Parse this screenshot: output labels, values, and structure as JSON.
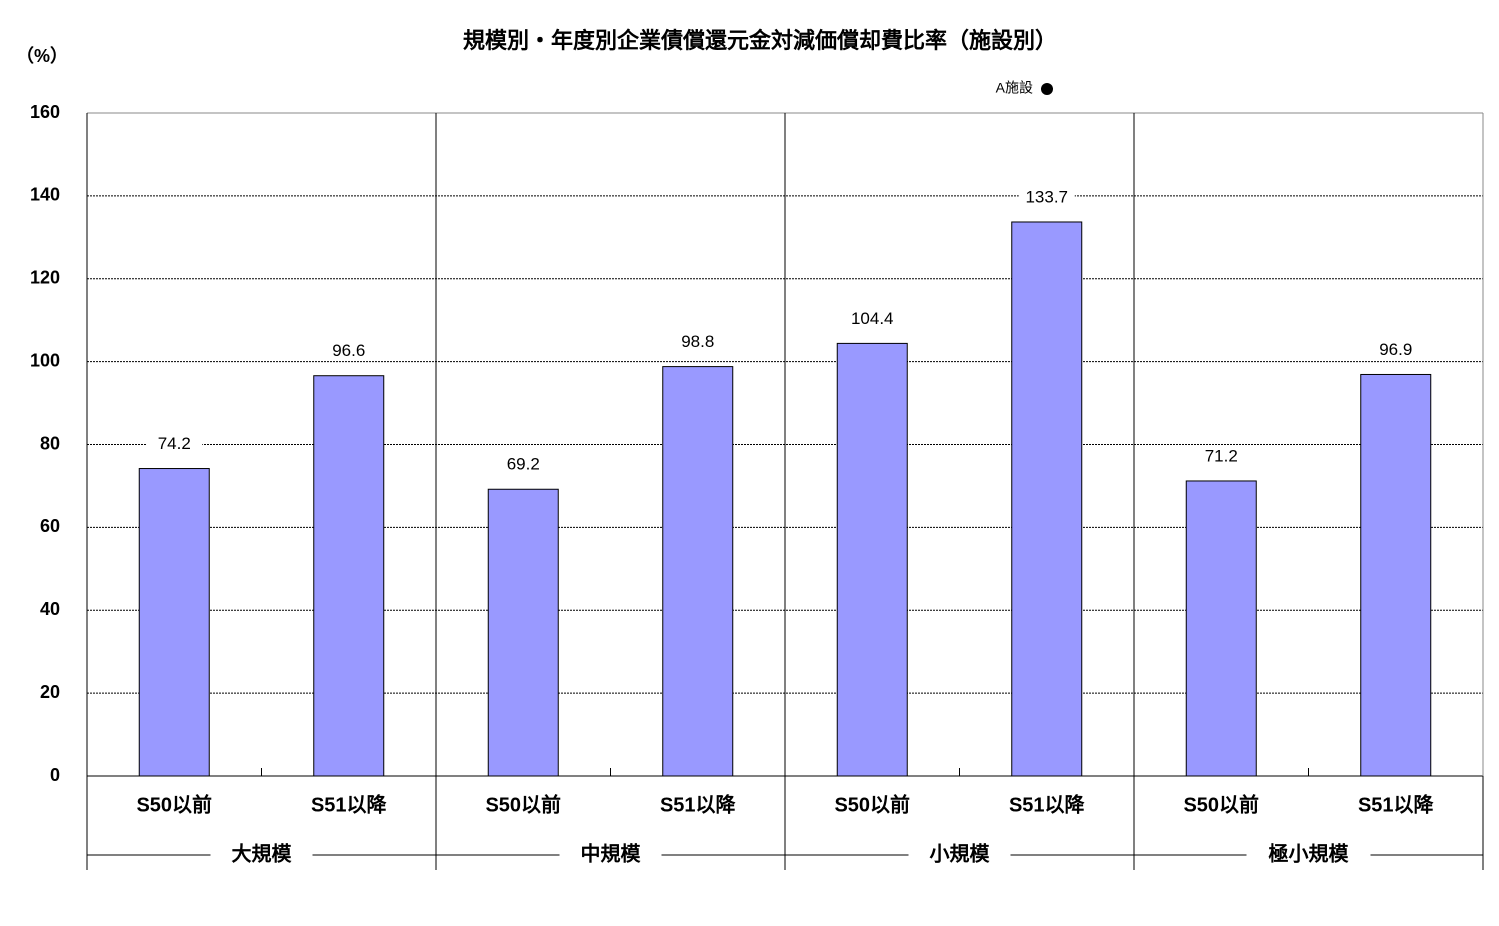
{
  "chart_data": {
    "type": "bar",
    "title": "規模別・年度別企業債償還元金対減価償却費比率（施設別）",
    "y_label": "（%）",
    "categories": [
      "S50以前",
      "S51以降",
      "S50以前",
      "S51以降",
      "S50以前",
      "S51以降",
      "S50以前",
      "S51以降"
    ],
    "groups": [
      "大規模",
      "中規模",
      "小規模",
      "極小規模"
    ],
    "series": [
      {
        "name": "A施設",
        "color": "#9999ff",
        "legend_color": "#000000",
        "values": [
          74.2,
          96.6,
          69.2,
          98.8,
          104.4,
          133.7,
          71.2,
          96.9
        ]
      }
    ],
    "ylim": [
      0,
      160
    ],
    "yticks": [
      0,
      20,
      40,
      60,
      80,
      100,
      120,
      140,
      160
    ],
    "grid": true,
    "legend": "top-right"
  }
}
